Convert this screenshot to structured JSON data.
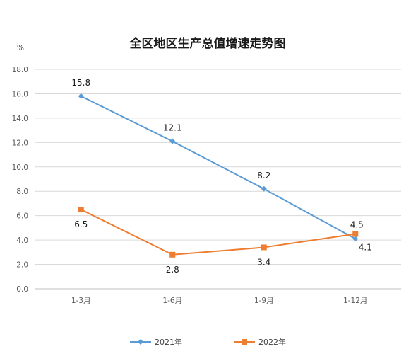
{
  "chart_data": {
    "type": "line",
    "title": "全区地区生产总值增速走势图",
    "ylabel": "%",
    "xlabel": "",
    "categories": [
      "1-3月",
      "1-6月",
      "1-9月",
      "1-12月"
    ],
    "ylim": [
      0,
      18
    ],
    "yticks": [
      "0.0",
      "2.0",
      "4.0",
      "6.0",
      "8.0",
      "10.0",
      "12.0",
      "14.0",
      "16.0",
      "18.0"
    ],
    "grid": true,
    "legend_position": "bottom",
    "series": [
      {
        "name": "2021年",
        "values": [
          15.8,
          12.1,
          8.2,
          4.1
        ],
        "labels": [
          "15.8",
          "12.1",
          "8.2",
          "4.1"
        ],
        "color": "#5b9bd5",
        "marker": "diamond"
      },
      {
        "name": "2022年",
        "values": [
          6.5,
          2.8,
          3.4,
          4.5
        ],
        "labels": [
          "6.5",
          "2.8",
          "3.4",
          "4.5"
        ],
        "color": "#ed7d31",
        "marker": "square"
      }
    ]
  }
}
